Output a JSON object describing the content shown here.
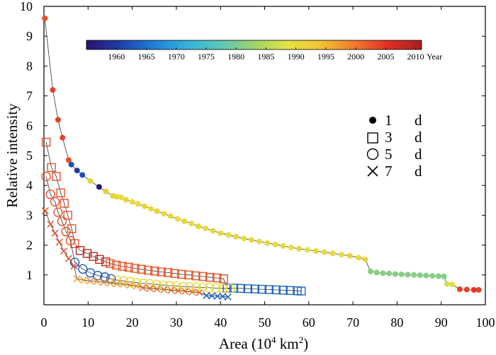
{
  "chart_data": {
    "type": "scatter",
    "xlabel": "Area",
    "xunit_base": "10",
    "xunit_exp": "4",
    "xunit_km": "km",
    "xunit_km_exp": "2",
    "ylabel": "Relative intensity",
    "xlim": [
      0,
      100
    ],
    "ylim": [
      0,
      10
    ],
    "xticks": [
      0,
      10,
      20,
      30,
      40,
      50,
      60,
      70,
      80,
      90,
      100
    ],
    "yticks": [
      1,
      2,
      3,
      4,
      5,
      6,
      7,
      8,
      9,
      10
    ],
    "colorbar": {
      "label": "Year",
      "range": [
        1955,
        2011
      ],
      "ticks": [
        1960,
        1965,
        1970,
        1975,
        1980,
        1985,
        1990,
        1995,
        2000,
        2005,
        2010
      ],
      "colormap": [
        "#2b1170",
        "#1d3fa8",
        "#1f7fd6",
        "#37b2dc",
        "#58c8b5",
        "#9fd26a",
        "#e3e442",
        "#f2c232",
        "#ef7a2a",
        "#e02f26",
        "#a31f1f"
      ]
    },
    "legend": [
      {
        "marker": "dot",
        "num": "1",
        "unit": "d"
      },
      {
        "marker": "square",
        "num": "3",
        "unit": "d"
      },
      {
        "marker": "circle",
        "num": "5",
        "unit": "d"
      },
      {
        "marker": "cross",
        "num": "7",
        "unit": "d"
      }
    ],
    "series": [
      {
        "name": "1 d",
        "marker": "dot",
        "points": [
          [
            0.2,
            9.6,
            2003
          ],
          [
            2,
            7.2,
            2004
          ],
          [
            3.2,
            6.2,
            2004
          ],
          [
            4.2,
            5.6,
            2004
          ],
          [
            5.6,
            4.85,
            2003
          ],
          [
            6.2,
            4.7,
            1962
          ],
          [
            7.5,
            4.5,
            1960
          ],
          [
            8.7,
            4.35,
            1962
          ],
          [
            10.5,
            4.15,
            1991
          ],
          [
            12.5,
            3.95,
            1956
          ],
          [
            14,
            3.8,
            1992
          ],
          [
            15.6,
            3.65,
            1991
          ],
          [
            16.5,
            3.62,
            1991
          ],
          [
            17.5,
            3.6,
            1990
          ],
          [
            18.6,
            3.52,
            1991
          ],
          [
            20,
            3.45,
            1990
          ],
          [
            21.3,
            3.38,
            1990
          ],
          [
            22.8,
            3.3,
            1991
          ],
          [
            24.2,
            3.22,
            1990
          ],
          [
            25.6,
            3.14,
            1991
          ],
          [
            27.2,
            3.05,
            1990
          ],
          [
            28.7,
            2.97,
            1991
          ],
          [
            30.3,
            2.88,
            1990
          ],
          [
            31.8,
            2.8,
            1991
          ],
          [
            33.4,
            2.72,
            1990
          ],
          [
            35,
            2.63,
            1991
          ],
          [
            36.6,
            2.56,
            1990
          ],
          [
            38.3,
            2.48,
            1991
          ],
          [
            40,
            2.4,
            1990
          ],
          [
            41.8,
            2.34,
            1990
          ],
          [
            43.5,
            2.28,
            1991
          ],
          [
            45.3,
            2.22,
            1990
          ],
          [
            47,
            2.17,
            1991
          ],
          [
            48.8,
            2.12,
            1990
          ],
          [
            50.6,
            2.07,
            1991
          ],
          [
            52.4,
            2.02,
            1990
          ],
          [
            54.2,
            1.97,
            1991
          ],
          [
            56,
            1.92,
            1990
          ],
          [
            57.8,
            1.88,
            1991
          ],
          [
            59.7,
            1.84,
            1990
          ],
          [
            61.6,
            1.8,
            1991
          ],
          [
            63.5,
            1.76,
            1990
          ],
          [
            65.4,
            1.72,
            1991
          ],
          [
            67.4,
            1.68,
            1990
          ],
          [
            69.3,
            1.64,
            1991
          ],
          [
            71.3,
            1.58,
            1990
          ],
          [
            72.8,
            1.52,
            1991
          ],
          [
            74,
            1.12,
            1981
          ],
          [
            75.4,
            1.08,
            1981
          ],
          [
            76.8,
            1.06,
            1981
          ],
          [
            78.2,
            1.05,
            1981
          ],
          [
            79.6,
            1.03,
            1981
          ],
          [
            81,
            1.02,
            1981
          ],
          [
            82.4,
            1.01,
            1981
          ],
          [
            83.8,
            1.0,
            1981
          ],
          [
            85.2,
            0.99,
            1981
          ],
          [
            86.6,
            0.98,
            1981
          ],
          [
            88,
            0.97,
            1981
          ],
          [
            89.4,
            0.96,
            1981
          ],
          [
            90.6,
            0.95,
            1981
          ],
          [
            91.3,
            0.7,
            1987
          ],
          [
            92.5,
            0.68,
            1988
          ],
          [
            94.2,
            0.52,
            2004
          ],
          [
            95.8,
            0.51,
            2004
          ],
          [
            97.4,
            0.5,
            2005
          ],
          [
            98.5,
            0.5,
            2004
          ]
        ]
      },
      {
        "name": "3 d",
        "marker": "square",
        "points": [
          [
            0.5,
            5.45,
            2003
          ],
          [
            1.7,
            4.6,
            2003
          ],
          [
            2.8,
            4.3,
            2003
          ],
          [
            3.8,
            3.75,
            2003
          ],
          [
            4.6,
            3.4,
            2003
          ],
          [
            5.4,
            3.0,
            2003
          ],
          [
            6.3,
            2.55,
            2003
          ],
          [
            7,
            2.05,
            2003
          ],
          [
            8.2,
            1.82,
            2008
          ],
          [
            9.8,
            1.72,
            2008
          ],
          [
            11.2,
            1.62,
            2008
          ],
          [
            12.6,
            1.52,
            2008
          ],
          [
            14,
            1.44,
            2008
          ],
          [
            15,
            1.38,
            2002
          ],
          [
            16.4,
            1.33,
            2003
          ],
          [
            17.8,
            1.29,
            2002
          ],
          [
            19.2,
            1.26,
            2003
          ],
          [
            20.6,
            1.22,
            2002
          ],
          [
            22.1,
            1.19,
            2003
          ],
          [
            23.6,
            1.16,
            2002
          ],
          [
            25.1,
            1.13,
            2003
          ],
          [
            26.6,
            1.1,
            2002
          ],
          [
            28.1,
            1.08,
            2003
          ],
          [
            29.6,
            1.05,
            2002
          ],
          [
            31.2,
            1.02,
            2003
          ],
          [
            32.8,
            1.0,
            2002
          ],
          [
            34.4,
            0.97,
            2003
          ],
          [
            36,
            0.95,
            2002
          ],
          [
            37.6,
            0.92,
            2003
          ],
          [
            39.2,
            0.9,
            2002
          ],
          [
            40.7,
            0.87,
            2003
          ],
          [
            41.5,
            0.56,
            1964
          ],
          [
            43,
            0.56,
            1964
          ],
          [
            44.6,
            0.55,
            1964
          ],
          [
            46.2,
            0.54,
            1964
          ],
          [
            47.8,
            0.53,
            1964
          ],
          [
            49.4,
            0.52,
            1964
          ],
          [
            51,
            0.51,
            1964
          ],
          [
            52.6,
            0.5,
            1964
          ],
          [
            54.2,
            0.49,
            1964
          ],
          [
            55.8,
            0.48,
            1964
          ],
          [
            57.4,
            0.47,
            1964
          ],
          [
            58.3,
            0.46,
            1964
          ]
        ]
      },
      {
        "name": "5 d",
        "marker": "circle",
        "points": [
          [
            0.5,
            4.3,
            2003
          ],
          [
            1.5,
            3.7,
            2003
          ],
          [
            2.5,
            3.45,
            2003
          ],
          [
            3.2,
            3.1,
            2003
          ],
          [
            4.1,
            2.8,
            2003
          ],
          [
            5,
            2.45,
            2003
          ],
          [
            6,
            2.15,
            2003
          ],
          [
            7,
            1.42,
            1963
          ],
          [
            8.8,
            1.2,
            1963
          ],
          [
            10.5,
            1.07,
            1963
          ],
          [
            12.2,
            0.98,
            1963
          ],
          [
            13.8,
            0.93,
            1963
          ],
          [
            15.2,
            0.87,
            1963
          ],
          [
            16.5,
            0.83,
            1991
          ],
          [
            18,
            0.8,
            1991
          ],
          [
            19.5,
            0.77,
            1991
          ],
          [
            21,
            0.74,
            1990
          ],
          [
            22.5,
            0.72,
            1991
          ],
          [
            24,
            0.7,
            1990
          ],
          [
            25.5,
            0.68,
            1991
          ],
          [
            27,
            0.66,
            1990
          ],
          [
            28.5,
            0.64,
            1991
          ],
          [
            30,
            0.63,
            1990
          ],
          [
            31.5,
            0.61,
            1991
          ],
          [
            33,
            0.6,
            1990
          ],
          [
            34.5,
            0.59,
            1991
          ],
          [
            36,
            0.58,
            1990
          ],
          [
            37.5,
            0.57,
            1991
          ],
          [
            39,
            0.56,
            1990
          ],
          [
            40.5,
            0.55,
            1991
          ],
          [
            42.2,
            0.54,
            1990
          ]
        ]
      },
      {
        "name": "7 d",
        "marker": "cross",
        "points": [
          [
            0.3,
            3.15,
            2003
          ],
          [
            1.5,
            2.7,
            2003
          ],
          [
            2.5,
            2.4,
            2003
          ],
          [
            3.5,
            2.1,
            2003
          ],
          [
            4.5,
            1.8,
            2003
          ],
          [
            5.6,
            1.55,
            2003
          ],
          [
            6.8,
            1.3,
            2003
          ],
          [
            7.5,
            0.87,
            1997
          ],
          [
            9,
            0.83,
            1997
          ],
          [
            10.5,
            0.8,
            1998
          ],
          [
            12,
            0.78,
            1997
          ],
          [
            13.5,
            0.75,
            1998
          ],
          [
            15,
            0.73,
            1997
          ],
          [
            16.5,
            0.71,
            1998
          ],
          [
            18,
            0.69,
            1997
          ],
          [
            19.5,
            0.66,
            1998
          ],
          [
            21,
            0.63,
            1997
          ],
          [
            22.4,
            0.57,
            2001
          ],
          [
            24,
            0.55,
            2001
          ],
          [
            25.6,
            0.53,
            2001
          ],
          [
            27.2,
            0.51,
            2001
          ],
          [
            28.8,
            0.49,
            2001
          ],
          [
            30.4,
            0.47,
            2001
          ],
          [
            32,
            0.45,
            2001
          ],
          [
            33.6,
            0.43,
            2001
          ],
          [
            35.2,
            0.41,
            2001
          ],
          [
            36.8,
            0.31,
            1964
          ],
          [
            38,
            0.3,
            1964
          ],
          [
            39.3,
            0.29,
            1964
          ],
          [
            40.5,
            0.28,
            1964
          ],
          [
            41.7,
            0.26,
            1964
          ]
        ]
      }
    ]
  }
}
